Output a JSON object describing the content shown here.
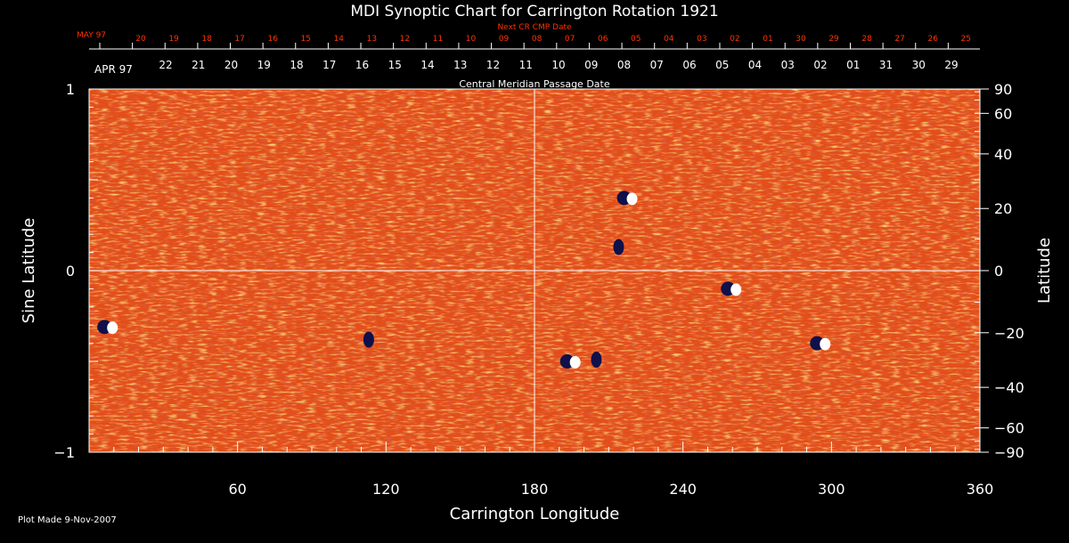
{
  "chart_data": {
    "type": "heatmap",
    "title": "MDI Synoptic Chart for Carrington Rotation 1921",
    "xlabel": "Carrington Longitude",
    "ylabel_left": "Sine Latitude",
    "ylabel_right": "Latitude",
    "xlim": [
      0,
      360
    ],
    "ylim": [
      -1,
      1
    ],
    "x_ticks": [
      60,
      120,
      180,
      240,
      300,
      360
    ],
    "y_ticks_left": [
      1,
      0,
      -1
    ],
    "y_tick_labels_left": [
      "1",
      "0",
      "−1"
    ],
    "y_ticks_right_deg": [
      90,
      60,
      40,
      20,
      0,
      -20,
      -40,
      -60,
      -90
    ],
    "y_tick_labels_right": [
      "90",
      "60",
      "40",
      "20",
      "0",
      "−20",
      "−40",
      "−60",
      "−90"
    ],
    "grid_lines": {
      "vertical_at_longitude": 180,
      "horizontal_at_sine_latitude": 0
    },
    "top_axis_next": {
      "label": "Next CR CMP Date",
      "month_label": "MAY 97",
      "day_labels": [
        "20",
        "19",
        "18",
        "17",
        "16",
        "15",
        "14",
        "13",
        "12",
        "11",
        "10",
        "09",
        "08",
        "07",
        "06",
        "05",
        "04",
        "03",
        "02",
        "01",
        "30",
        "29",
        "28",
        "27",
        "26",
        "25"
      ],
      "color": "#ff3300"
    },
    "top_axis_current": {
      "label": "Central Meridian Passage Date",
      "month_label": "APR 97",
      "day_labels": [
        "22",
        "21",
        "20",
        "19",
        "18",
        "17",
        "16",
        "15",
        "14",
        "13",
        "12",
        "11",
        "10",
        "09",
        "08",
        "07",
        "06",
        "05",
        "04",
        "03",
        "02",
        "01",
        "31",
        "30",
        "29"
      ],
      "color": "#ffffff"
    },
    "colors": {
      "background": "#000000",
      "field_base": "#e34d17",
      "field_dark": "#c0200c",
      "field_light": "#f59a2c",
      "positive_polarity": "#ffffff",
      "negative_polarity": "#10104a"
    },
    "active_regions": [
      {
        "lon": 218,
        "sinlat": 0.4,
        "polarity": "bipolar"
      },
      {
        "lon": 214,
        "sinlat": 0.13,
        "polarity": "negative"
      },
      {
        "lon": 195,
        "sinlat": -0.5,
        "polarity": "bipolar"
      },
      {
        "lon": 205,
        "sinlat": -0.49,
        "polarity": "negative"
      },
      {
        "lon": 296,
        "sinlat": -0.4,
        "polarity": "bipolar"
      },
      {
        "lon": 8,
        "sinlat": -0.31,
        "polarity": "bipolar"
      },
      {
        "lon": 113,
        "sinlat": -0.38,
        "polarity": "negative"
      },
      {
        "lon": 260,
        "sinlat": -0.1,
        "polarity": "bipolar"
      }
    ]
  },
  "footer": {
    "plot_made": "Plot Made  9-Nov-2007"
  }
}
